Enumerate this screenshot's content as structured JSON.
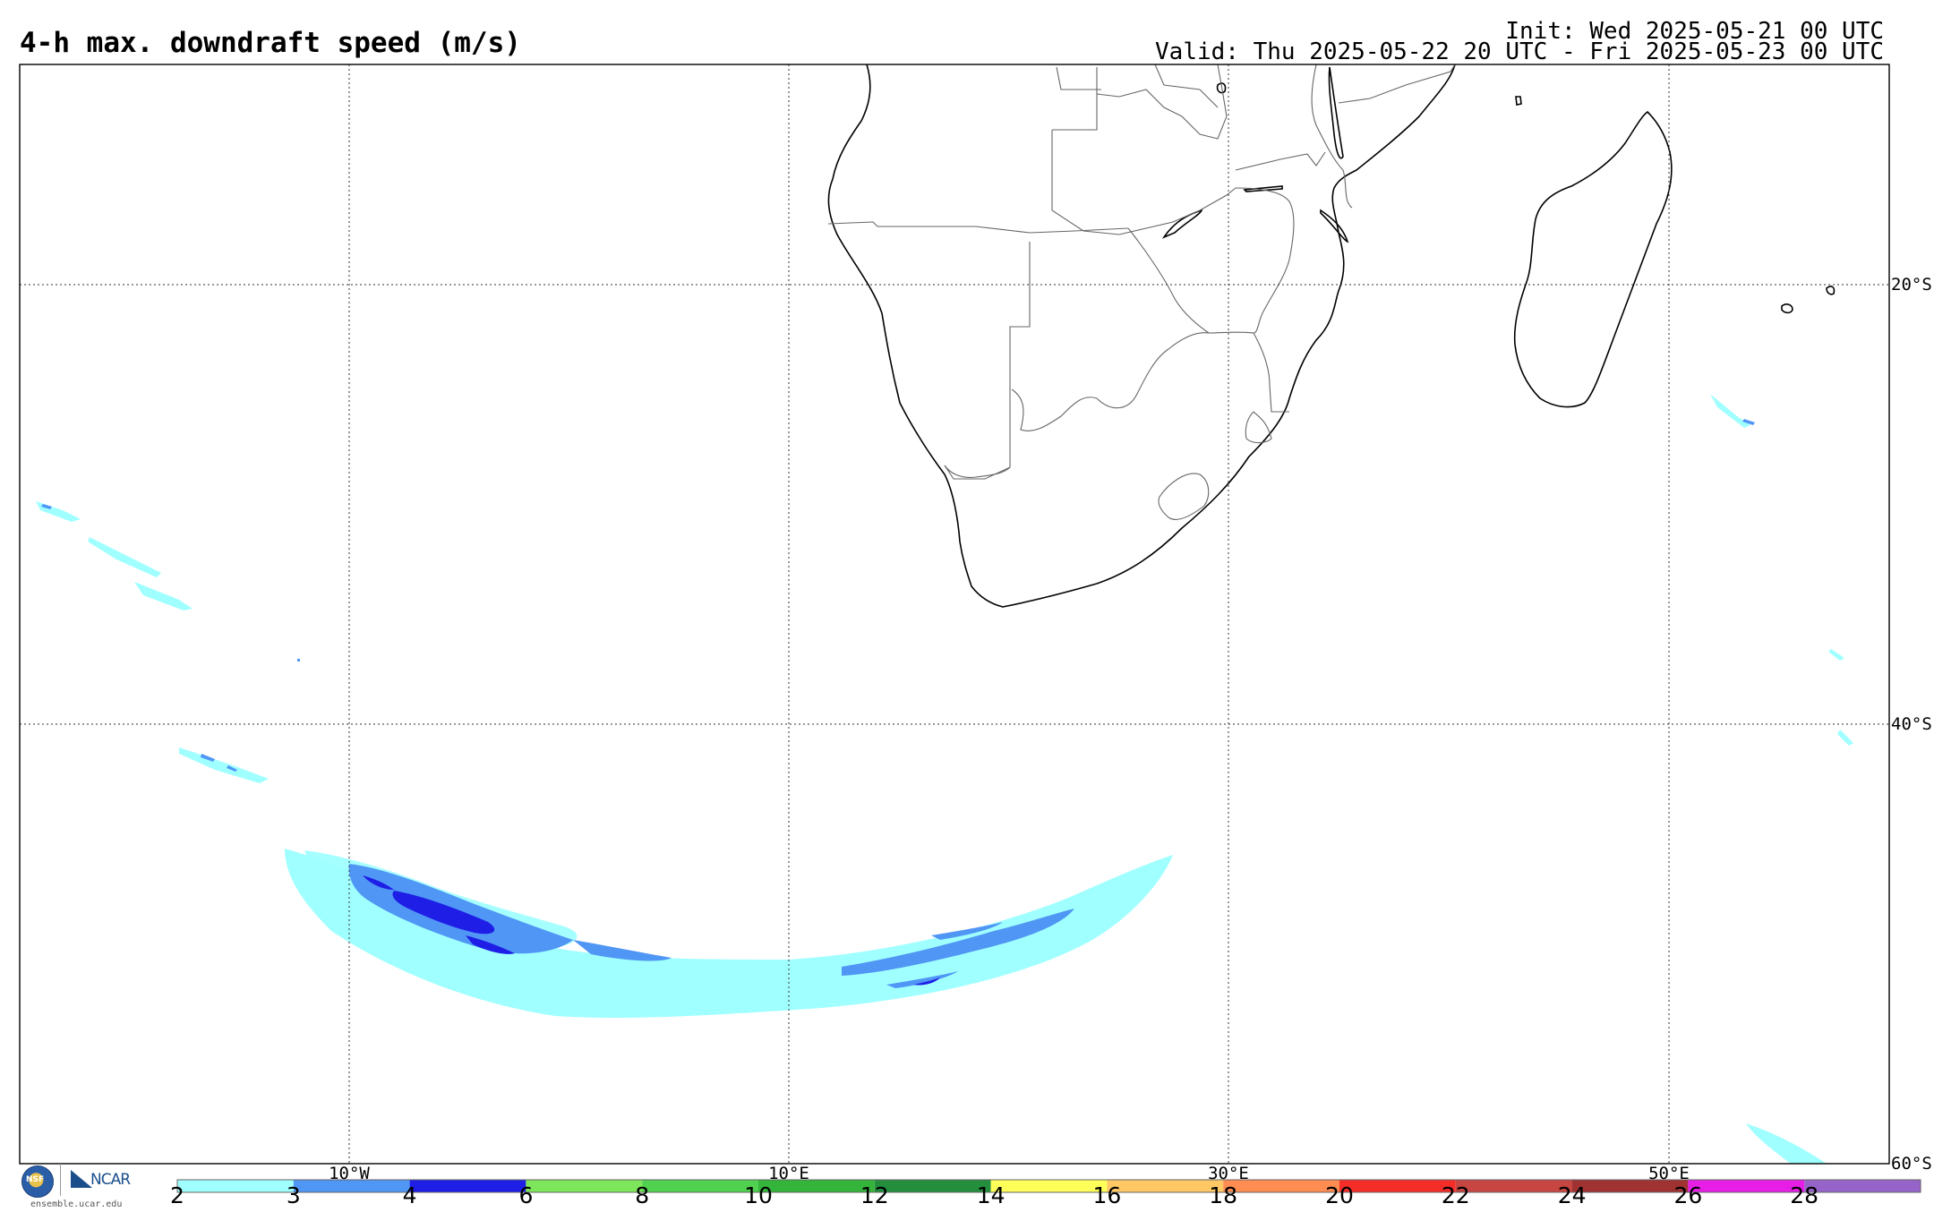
{
  "header": {
    "title": "4-h max. downdraft speed (m/s)",
    "init": "Init: Wed 2025-05-21 00 UTC",
    "valid": "Valid: Thu 2025-05-22 20 UTC - Fri 2025-05-23 00 UTC"
  },
  "map": {
    "projection": "cylindrical",
    "lon_range": [
      -25,
      60
    ],
    "lat_range": [
      -60,
      -10
    ],
    "gridlines": "dotted",
    "lon_labels": [
      "10°W",
      "10°E",
      "30°E",
      "50°E"
    ],
    "lat_labels": [
      "20°S",
      "40°S",
      "60°S"
    ]
  },
  "colorbar": {
    "ticks": [
      "2",
      "3",
      "4",
      "6",
      "8",
      "10",
      "12",
      "14",
      "16",
      "18",
      "20",
      "22",
      "24",
      "26",
      "28"
    ],
    "colors": [
      "#a0ffff",
      "#5096f5",
      "#1e1ee6",
      "#7ee65a",
      "#50d250",
      "#35b43c",
      "#238f3c",
      "#ffff5a",
      "#ffc864",
      "#ff8c50",
      "#f52d28",
      "#c84641",
      "#a03232",
      "#e61ee6",
      "#9664c8"
    ]
  },
  "footer": {
    "nsf": "NSF",
    "ncar": "NCAR",
    "credit": "ensemble.ucar.edu"
  }
}
